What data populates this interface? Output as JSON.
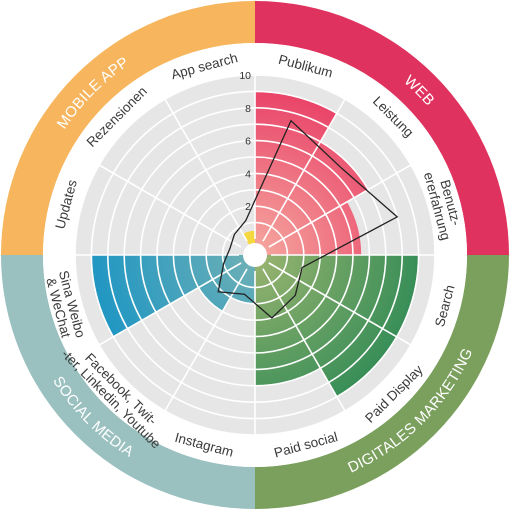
{
  "chart_data": {
    "type": "radial-bar",
    "r_range": [
      0,
      10
    ],
    "r_ticks": [
      "2",
      "4",
      "6",
      "8",
      "10"
    ],
    "grid": true,
    "background_color": "#e6e6e6",
    "groups": [
      {
        "name": "WEB",
        "ring_color": "#e0325e",
        "fill_outer": "#e83a63",
        "fill_inner": "#f5a9a0",
        "categories": [
          "Publikum",
          "Leistung",
          "Benutz-\nererfahrung"
        ],
        "values": [
          9,
          7,
          5.5
        ]
      },
      {
        "name": "DIGITALES MARKETING",
        "ring_color": "#7ba05d",
        "fill_outer": "#2e8a55",
        "fill_inner": "#9cb570",
        "categories": [
          "Search",
          "Paid Display",
          "Paid social"
        ],
        "values": [
          9,
          9,
          7
        ]
      },
      {
        "name": "SOCIAL MEDIA",
        "ring_color": "#9ac0c0",
        "fill_outer": "#1894c4",
        "fill_inner": "#6fb0b5",
        "categories": [
          "Instagram",
          "Facebook, Twit-\n-ter, Linkedin, Youtube",
          "Sina Weibo\n& WeChat"
        ],
        "values": [
          2,
          3,
          9
        ]
      },
      {
        "name": "MOBILE APP",
        "ring_color": "#f7b55d",
        "fill_outer": "#f5d840",
        "fill_inner": "#f5d840",
        "categories": [
          "Updates",
          "Rezensionen",
          "App search"
        ],
        "values": [
          0,
          0,
          0.5
        ]
      }
    ],
    "overlay_line": {
      "color": "#222222",
      "values": [
        7.5,
        6.5,
        8,
        2,
        2.5,
        3,
        1.5,
        2.2,
        1,
        0.6,
        0.8,
        1.2
      ]
    }
  }
}
